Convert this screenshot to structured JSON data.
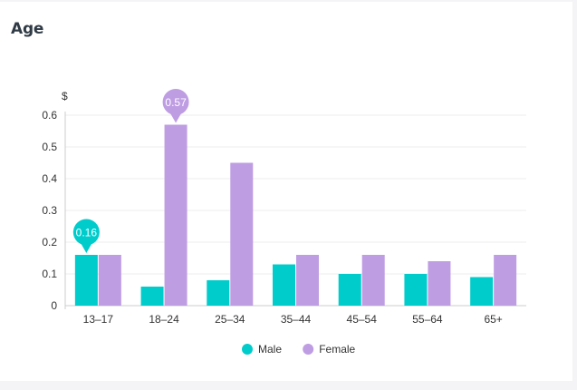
{
  "card": {
    "title": "Age"
  },
  "chart_data": {
    "type": "bar",
    "title": "Age",
    "xlabel": "",
    "ylabel": "$",
    "ylim": [
      0,
      0.6
    ],
    "yticks": [
      0,
      0.1,
      0.2,
      0.3,
      0.4,
      0.5,
      0.6
    ],
    "grid": true,
    "legend_position": "bottom",
    "categories": [
      "13–17",
      "18–24",
      "25–34",
      "35–44",
      "45–54",
      "55–64",
      "65+"
    ],
    "series": [
      {
        "name": "Male",
        "color": "#00cccc",
        "values": [
          0.16,
          0.06,
          0.08,
          0.13,
          0.1,
          0.1,
          0.09
        ]
      },
      {
        "name": "Female",
        "color": "#bf9de3",
        "values": [
          0.16,
          0.57,
          0.45,
          0.16,
          0.16,
          0.14,
          0.16
        ]
      }
    ],
    "annotations": [
      {
        "series": "Male",
        "category": "13–17",
        "label": "0.16"
      },
      {
        "series": "Female",
        "category": "18–24",
        "label": "0.57"
      }
    ]
  }
}
